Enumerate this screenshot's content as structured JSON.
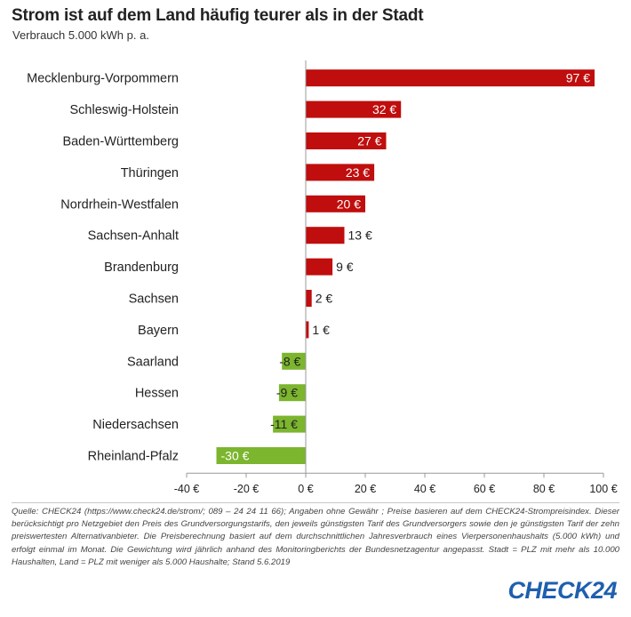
{
  "header": {
    "title": "Strom ist auf dem Land häufig teurer als in der Stadt",
    "subtitle": "Verbrauch 5.000 kWh p. a."
  },
  "chart_data": {
    "type": "bar",
    "orientation": "horizontal",
    "categories": [
      "Mecklenburg-Vorpommern",
      "Schleswig-Holstein",
      "Baden-Württemberg",
      "Thüringen",
      "Nordrhein-Westfalen",
      "Sachsen-Anhalt",
      "Brandenburg",
      "Sachsen",
      "Bayern",
      "Saarland",
      "Hessen",
      "Niedersachsen",
      "Rheinland-Pfalz"
    ],
    "values": [
      97,
      32,
      27,
      23,
      20,
      13,
      9,
      2,
      1,
      -8,
      -9,
      -11,
      -30
    ],
    "data_labels": [
      "97 €",
      "32 €",
      "27 €",
      "23 €",
      "20 €",
      "13 €",
      "9 €",
      "2 €",
      "1 €",
      "-8 €",
      "-9 €",
      "-11 €",
      "-30 €"
    ],
    "xlim": [
      -40,
      100
    ],
    "x_ticks": [
      -40,
      -20,
      0,
      20,
      40,
      60,
      80,
      100
    ],
    "x_tick_labels": [
      "-40 €",
      "-20 €",
      "0 €",
      "20 €",
      "40 €",
      "60 €",
      "80 €",
      "100 €"
    ],
    "xlabel": "",
    "ylabel": "",
    "grid": false,
    "legend": "none",
    "colors": {
      "positive": "#c00d0d",
      "negative": "#7cb52e",
      "axis": "#999999"
    }
  },
  "footer": {
    "note": "Quelle: CHECK24 (https://www.check24.de/strom/; 089 – 24 24 11 66); Angaben ohne Gewähr ; Preise basieren auf dem CHECK24-Strompreisindex. Dieser berücksichtigt pro Netzgebiet den Preis des Grundversorgungstarifs, den jeweils günstigsten Tarif des Grundversorgers sowie den je günstigsten Tarif der zehn preiswertesten Alternativanbieter. Die Preisberechnung basiert auf dem durchschnittlichen Jahresverbrauch eines Vierpersonenhaushalts (5.000 kWh) und erfolgt einmal im Monat. Die Gewichtung wird jährlich anhand des Monitoringberichts der Bundesnetzagentur angepasst. Stadt = PLZ mit mehr als 10.000 Haushalten, Land = PLZ mit weniger als 5.000 Haushalte; Stand 5.6.2019",
    "logo_text": "CHECK",
    "logo_number": "24",
    "logo_color": "#1f5fae"
  }
}
